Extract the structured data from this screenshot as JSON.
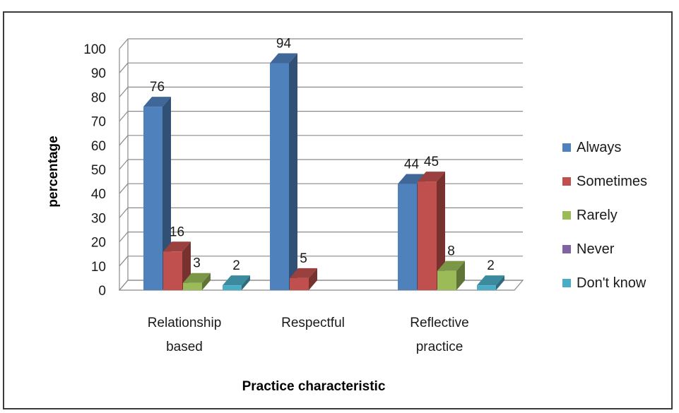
{
  "chart_data": {
    "type": "bar",
    "style": "3d-clustered-column",
    "title": "",
    "xlabel": "Practice characteristic",
    "ylabel": "percentage",
    "ylim": [
      0,
      100
    ],
    "yticks": [
      0,
      10,
      20,
      30,
      40,
      50,
      60,
      70,
      80,
      90,
      100
    ],
    "grid": true,
    "legend_position": "right",
    "categories": [
      [
        "Relationship",
        "based"
      ],
      [
        "Respectful"
      ],
      [
        "Reflective",
        "practice"
      ]
    ],
    "series": [
      {
        "name": "Always",
        "color": "#4f81bd",
        "values": [
          76,
          94,
          44
        ]
      },
      {
        "name": "Sometimes",
        "color": "#c0504d",
        "values": [
          16,
          5,
          45
        ]
      },
      {
        "name": "Rarely",
        "color": "#9bbb59",
        "values": [
          3,
          null,
          8
        ]
      },
      {
        "name": "Never",
        "color": "#8064a2",
        "values": [
          null,
          null,
          null
        ]
      },
      {
        "name": "Don't know",
        "color": "#4bacc6",
        "values": [
          2,
          null,
          2
        ]
      }
    ]
  }
}
